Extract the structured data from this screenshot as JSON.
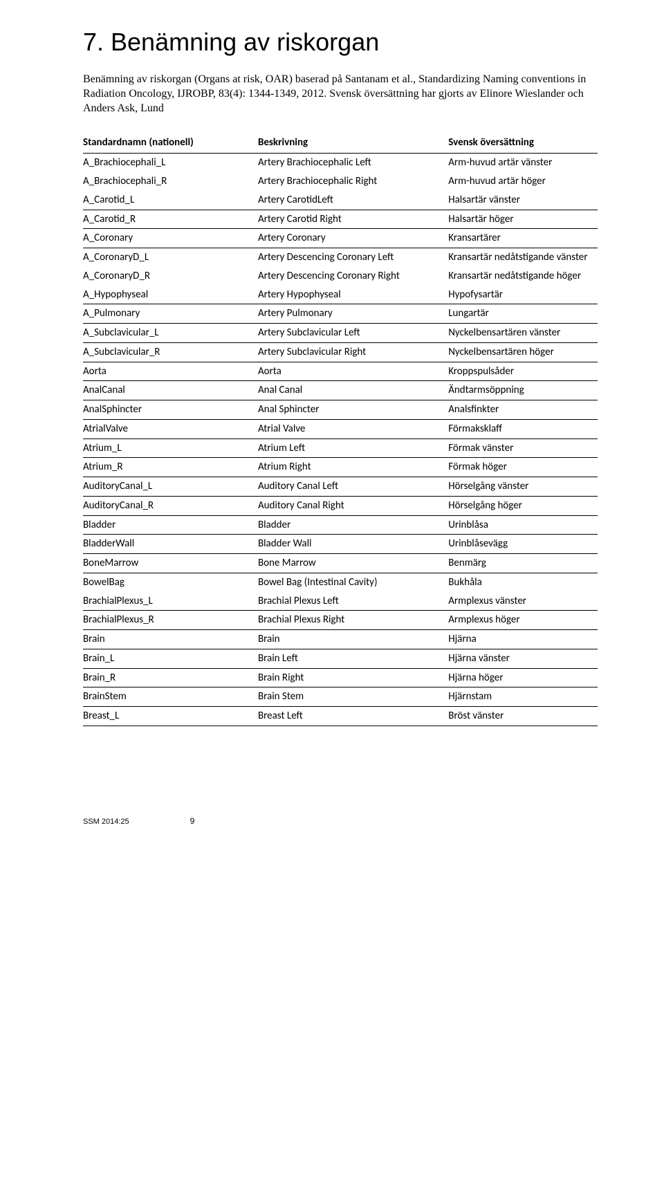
{
  "heading": "7. Benämning av riskorgan",
  "intro": "Benämning av riskorgan (Organs at risk, OAR) baserad på Santanam et al., Standardizing Naming conventions in Radiation Oncology, IJROBP, 83(4): 1344-1349, 2012. Svensk översättning har gjorts av Elinore Wieslander och Anders Ask, Lund",
  "columns": [
    "Standardnamn (nationell)",
    "Beskrivning",
    "Svensk översättning"
  ],
  "rows": [
    {
      "a": "A_Brachiocephali_L",
      "b": "Artery Brachiocephalic Left",
      "c": "Arm-huvud artär vänster",
      "rule": false
    },
    {
      "a": "A_Brachiocephali_R",
      "b": "Artery Brachiocephalic Right",
      "c": "Arm-huvud artär höger",
      "rule": false
    },
    {
      "a": "A_Carotid_L",
      "b": "Artery CarotidLeft",
      "c": "Halsartär vänster",
      "rule": true
    },
    {
      "a": "A_Carotid_R",
      "b": "Artery Carotid Right",
      "c": "Halsartär höger",
      "rule": true
    },
    {
      "a": "A_Coronary",
      "b": "Artery Coronary",
      "c": "Kransartärer",
      "rule": true
    },
    {
      "a": "A_CoronaryD_L",
      "b": "Artery Descencing Coronary Left",
      "c": "Kransartär nedåtstigande vänster",
      "rule": false
    },
    {
      "a": "A_CoronaryD_R",
      "b": "Artery Descencing Coronary Right",
      "c": "Kransartär nedåtstigande höger",
      "rule": false
    },
    {
      "a": "A_Hypophyseal",
      "b": "Artery Hypophyseal",
      "c": "Hypofysartär",
      "rule": true
    },
    {
      "a": "A_Pulmonary",
      "b": "Artery Pulmonary",
      "c": "Lungartär",
      "rule": true
    },
    {
      "a": "A_Subclavicular_L",
      "b": "Artery Subclavicular Left",
      "c": "Nyckelbensartären vänster",
      "rule": true
    },
    {
      "a": "A_Subclavicular_R",
      "b": "Artery Subclavicular Right",
      "c": "Nyckelbensartären höger",
      "rule": true
    },
    {
      "a": "Aorta",
      "b": "Aorta",
      "c": "Kroppspulsåder",
      "rule": true
    },
    {
      "a": "AnalCanal",
      "b": "Anal Canal",
      "c": "Ändtarmsöppning",
      "rule": true
    },
    {
      "a": "AnalSphincter",
      "b": "Anal Sphincter",
      "c": "Analsfinkter",
      "rule": true
    },
    {
      "a": "AtrialValve",
      "b": "Atrial Valve",
      "c": "Förmaksklaff",
      "rule": true
    },
    {
      "a": "Atrium_L",
      "b": "Atrium Left",
      "c": "Förmak vänster",
      "rule": true
    },
    {
      "a": "Atrium_R",
      "b": "Atrium Right",
      "c": "Förmak höger",
      "rule": true
    },
    {
      "a": "AuditoryCanal_L",
      "b": "Auditory Canal Left",
      "c": "Hörselgång vänster",
      "rule": true
    },
    {
      "a": "AuditoryCanal_R",
      "b": "Auditory Canal Right",
      "c": "Hörselgång höger",
      "rule": true
    },
    {
      "a": "Bladder",
      "b": "Bladder",
      "c": "Urinblåsa",
      "rule": true
    },
    {
      "a": "BladderWall",
      "b": "Bladder Wall",
      "c": "Urinblåsevägg",
      "rule": true
    },
    {
      "a": "BoneMarrow",
      "b": "Bone Marrow",
      "c": "Benmärg",
      "rule": true
    },
    {
      "a": "BowelBag",
      "b": "Bowel Bag (Intestinal Cavity)",
      "c": "Bukhåla",
      "rule": false
    },
    {
      "a": "BrachialPlexus_L",
      "b": "Brachial Plexus Left",
      "c": "Armplexus vänster",
      "rule": true
    },
    {
      "a": "BrachialPlexus_R",
      "b": "Brachial Plexus Right",
      "c": "Armplexus höger",
      "rule": true
    },
    {
      "a": "Brain",
      "b": "Brain",
      "c": "Hjärna",
      "rule": true
    },
    {
      "a": "Brain_L",
      "b": "Brain Left",
      "c": "Hjärna vänster",
      "rule": true
    },
    {
      "a": "Brain_R",
      "b": "Brain Right",
      "c": "Hjärna höger",
      "rule": true
    },
    {
      "a": "BrainStem",
      "b": "Brain Stem",
      "c": "Hjärnstam",
      "rule": true
    },
    {
      "a": "Breast_L",
      "b": "Breast Left",
      "c": "Bröst vänster",
      "rule": true
    }
  ],
  "footer_report": "SSM 2014:25",
  "footer_page": "9"
}
